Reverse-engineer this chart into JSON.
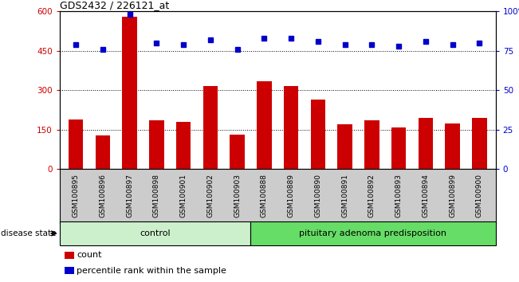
{
  "title": "GDS2432 / 226121_at",
  "categories": [
    "GSM100895",
    "GSM100896",
    "GSM100897",
    "GSM100898",
    "GSM100901",
    "GSM100902",
    "GSM100903",
    "GSM100888",
    "GSM100889",
    "GSM100890",
    "GSM100891",
    "GSM100892",
    "GSM100893",
    "GSM100894",
    "GSM100899",
    "GSM100900"
  ],
  "bar_values": [
    190,
    128,
    580,
    185,
    180,
    315,
    130,
    335,
    315,
    265,
    170,
    185,
    160,
    195,
    175,
    195
  ],
  "dot_values": [
    79,
    76,
    98,
    80,
    79,
    82,
    76,
    83,
    83,
    81,
    79,
    79,
    78,
    81,
    79,
    80
  ],
  "bar_color": "#cc0000",
  "dot_color": "#0000cc",
  "ylim_left": [
    0,
    600
  ],
  "ylim_right": [
    0,
    100
  ],
  "yticks_left": [
    0,
    150,
    300,
    450,
    600
  ],
  "ytick_labels_left": [
    "0",
    "150",
    "300",
    "450",
    "600"
  ],
  "yticks_right": [
    0,
    25,
    50,
    75,
    100
  ],
  "ytick_labels_right": [
    "0",
    "25",
    "50",
    "75",
    "100%"
  ],
  "grid_values": [
    150,
    300,
    450
  ],
  "control_count": 7,
  "control_label": "control",
  "disease_label": "pituitary adenoma predisposition",
  "disease_state_label": "disease state",
  "legend_bar_label": "count",
  "legend_dot_label": "percentile rank within the sample",
  "bg_color": "#ffffff",
  "plot_bg_color": "#ffffff",
  "tick_bg_color": "#cccccc",
  "control_bg": "#ccf0cc",
  "disease_bg": "#66dd66",
  "xlabel_color": "#cc0000",
  "ylabel_right_color": "#0000cc"
}
